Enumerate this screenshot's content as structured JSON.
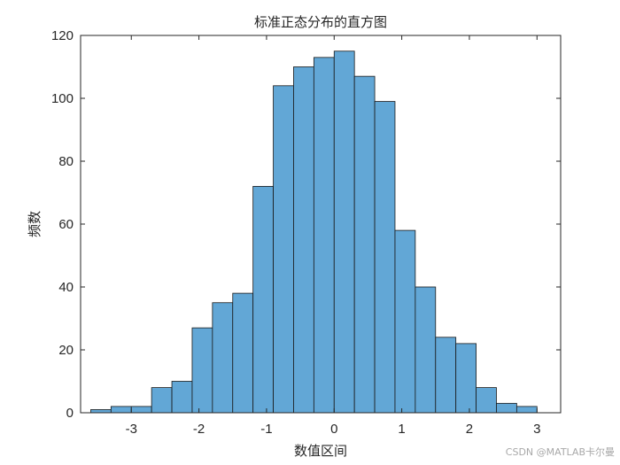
{
  "chart_data": {
    "type": "bar",
    "title": "标准正态分布的直方图",
    "xlabel": "数值区间",
    "ylabel": "频数",
    "bin_edges": [
      -3.6,
      -3.3,
      -3.0,
      -2.7,
      -2.4,
      -2.1,
      -1.8,
      -1.5,
      -1.2,
      -0.9,
      -0.6,
      -0.3,
      0.0,
      0.3,
      0.6,
      0.9,
      1.2,
      1.5,
      1.8,
      2.1,
      2.4,
      2.7,
      3.0
    ],
    "values": [
      1,
      2,
      2,
      8,
      10,
      27,
      35,
      38,
      72,
      104,
      110,
      113,
      115,
      107,
      99,
      58,
      40,
      24,
      22,
      8,
      3,
      2
    ],
    "xlim": [
      -3.75,
      3.35
    ],
    "ylim": [
      0,
      120
    ],
    "xticks": [
      -3,
      -2,
      -1,
      0,
      1,
      2,
      3
    ],
    "xtick_labels": [
      "-3",
      "-2",
      "-1",
      "0",
      "1",
      "2",
      "3"
    ],
    "yticks": [
      0,
      20,
      40,
      60,
      80,
      100,
      120
    ],
    "ytick_labels": [
      "0",
      "20",
      "40",
      "60",
      "80",
      "100",
      "120"
    ],
    "bar_color": "#62a7d6",
    "edge_color": "#1a1a1a",
    "grid": false
  },
  "watermark": "CSDN @MATLAB卡尔曼"
}
